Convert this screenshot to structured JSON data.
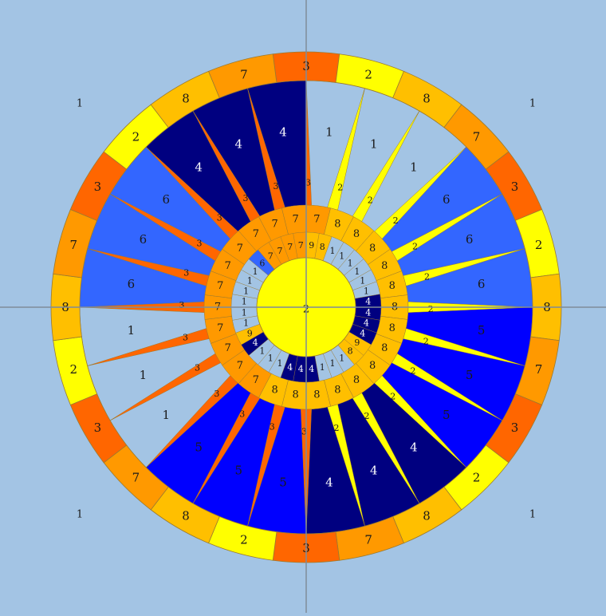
{
  "colors": {
    "background": "#a3c4e4",
    "axis": "#7f8c99",
    "outline": "#9a7a30",
    "c1": "#a3c4e4",
    "c2": "#ffff00",
    "c3": "#ff6600",
    "c4": "#000080",
    "c5": "#0000ff",
    "c6": "#3366ff",
    "c7": "#ff9900",
    "c8": "#ffbf00",
    "c9": "#ffbf00",
    "dark_text": "#1a1a1a",
    "light_text": "#ffffff"
  },
  "corner_labels": [
    "1",
    "1",
    "1",
    "1"
  ],
  "hub_label": "2",
  "outer_ring": [
    "3",
    "2",
    "8",
    "7",
    "3",
    "2",
    "8",
    "7",
    "3",
    "2",
    "8",
    "7",
    "3",
    "2",
    "8",
    "7",
    "3",
    "2",
    "8",
    "7",
    "3",
    "2",
    "8",
    "7"
  ],
  "sectors": [
    {
      "inner": "1",
      "spike": "3"
    },
    {
      "inner": "1",
      "spike": "2"
    },
    {
      "inner": "1",
      "spike": "2"
    },
    {
      "inner": "6",
      "spike": "2"
    },
    {
      "inner": "6",
      "spike": "2"
    },
    {
      "inner": "6",
      "spike": "2"
    },
    {
      "inner": "5",
      "spike": "2"
    },
    {
      "inner": "5",
      "spike": "2"
    },
    {
      "inner": "5",
      "spike": "2"
    },
    {
      "inner": "4",
      "spike": "2"
    },
    {
      "inner": "4",
      "spike": "2"
    },
    {
      "inner": "4",
      "spike": "2"
    },
    {
      "inner": "5",
      "spike": "3"
    },
    {
      "inner": "5",
      "spike": "3"
    },
    {
      "inner": "5",
      "spike": "3"
    },
    {
      "inner": "1",
      "spike": "3"
    },
    {
      "inner": "1",
      "spike": "3"
    },
    {
      "inner": "1",
      "spike": "3"
    },
    {
      "inner": "6",
      "spike": "3"
    },
    {
      "inner": "6",
      "spike": "3"
    },
    {
      "inner": "6",
      "spike": "3"
    },
    {
      "inner": "4",
      "spike": "3"
    },
    {
      "inner": "4",
      "spike": "3"
    },
    {
      "inner": "4",
      "spike": "3"
    }
  ],
  "mid_ring": [
    "7",
    "8",
    "8",
    "8",
    "8",
    "8",
    "8",
    "8",
    "8",
    "8",
    "8",
    "8",
    "8",
    "8",
    "8",
    "7",
    "7",
    "7",
    "7",
    "7",
    "7",
    "7",
    "7",
    "7",
    "7",
    "7"
  ],
  "small_ring": [
    "9",
    "8",
    "1",
    "1",
    "1",
    "1",
    "1",
    "1",
    "4",
    "4",
    "4",
    "4",
    "9",
    "8",
    "1",
    "1",
    "1",
    "4",
    "4",
    "4",
    "1",
    "1",
    "1",
    "4",
    "9",
    "1",
    "1",
    "1",
    "1",
    "1",
    "1",
    "6",
    "7",
    "7",
    "7",
    "7"
  ]
}
